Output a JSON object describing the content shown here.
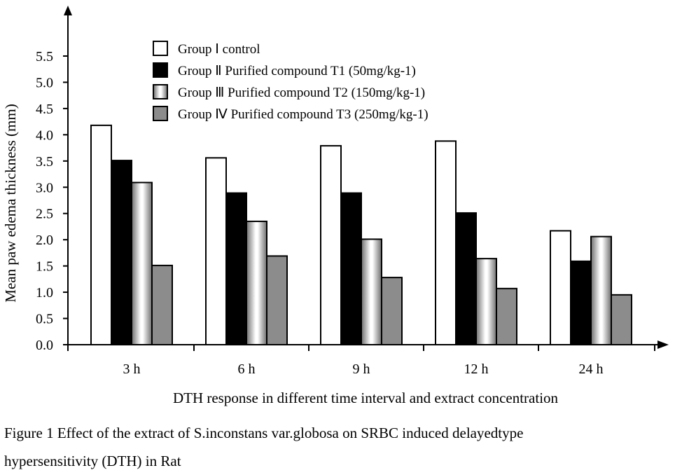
{
  "chart_data": {
    "type": "bar",
    "title": "",
    "xlabel": "DTH response in different time interval and extract concentration",
    "ylabel": "Mean paw edema thickness (mm)",
    "ylim": [
      0,
      5.5
    ],
    "yticks": [
      "0.0",
      "0.5",
      "1.0",
      "1.5",
      "2.0",
      "2.5",
      "3.0",
      "3.5",
      "4.0",
      "4.5",
      "5.0",
      "5.5"
    ],
    "categories": [
      "3 h",
      "6 h",
      "9 h",
      "12 h",
      "24 h"
    ],
    "legend_position": "top-center",
    "grid": false,
    "series": [
      {
        "name": "Group Ⅰ control",
        "fill": "white",
        "values": [
          4.18,
          3.56,
          3.79,
          3.88,
          2.17
        ]
      },
      {
        "name": "Group Ⅱ Purified compound T1 (50mg/kg-1)",
        "fill": "black",
        "values": [
          3.51,
          2.89,
          2.89,
          2.51,
          1.59
        ]
      },
      {
        "name": "Group Ⅲ  Purified compound T2 (150mg/kg-1)",
        "fill": "silver-gradient",
        "values": [
          3.09,
          2.35,
          2.01,
          1.64,
          2.06
        ]
      },
      {
        "name": "Group Ⅳ  Purified compound T3 (250mg/kg-1)",
        "fill": "gray",
        "values": [
          1.51,
          1.69,
          1.28,
          1.07,
          0.95
        ]
      }
    ]
  },
  "caption": {
    "line1": "Figure 1 Effect of the extract of S.inconstans var.globosa on SRBC induced delayedtype",
    "line2": "hypersensitivity (DTH) in Rat"
  },
  "colors": {
    "series_white": "#ffffff",
    "series_black": "#000000",
    "series_gray": "#8c8c8c",
    "axis": "#000000"
  }
}
